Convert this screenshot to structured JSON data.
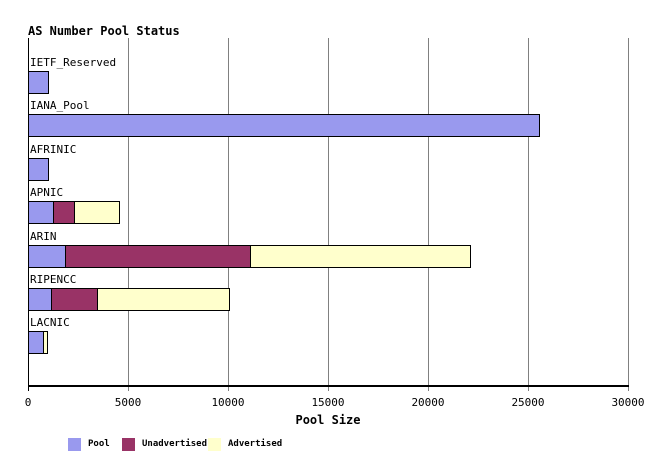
{
  "title": "AS Number Pool Status",
  "xlabel": "Pool Size",
  "chart_data": {
    "type": "bar",
    "orientation": "horizontal",
    "stacked": true,
    "title": "AS Number Pool Status",
    "xlabel": "Pool Size",
    "ylabel": "",
    "categories": [
      "IETF_Reserved",
      "IANA_Pool",
      "AFRINIC",
      "APNIC",
      "ARIN",
      "RIPENCC",
      "LACNIC"
    ],
    "series": [
      {
        "name": "Pool",
        "color": "#9999ee",
        "values": [
          1025,
          25600,
          1025,
          1300,
          1900,
          1175,
          775
        ]
      },
      {
        "name": "Unadvertised",
        "color": "#993366",
        "values": [
          0,
          0,
          0,
          1050,
          9250,
          2325,
          25
        ]
      },
      {
        "name": "Advertised",
        "color": "#ffffcc",
        "values": [
          0,
          0,
          0,
          2250,
          11000,
          6600,
          175
        ]
      }
    ],
    "totals": [
      1025,
      25600,
      1025,
      4600,
      22150,
      10100,
      975
    ],
    "xlim": [
      0,
      30000
    ],
    "x_ticks": [
      0,
      5000,
      10000,
      15000,
      20000,
      25000,
      30000
    ],
    "x_tick_labels": [
      "0",
      "5000",
      "10000",
      "15000",
      "20000",
      "25000",
      "30000"
    ],
    "grid": "vertical",
    "legend_position": "bottom"
  },
  "legend": {
    "items": [
      {
        "label": "Pool",
        "color": "#9999ee"
      },
      {
        "label": "Unadvertised",
        "color": "#993366"
      },
      {
        "label": "Advertised",
        "color": "#ffffcc"
      }
    ]
  },
  "colors": {
    "pool": "#9999ee",
    "unadvertised": "#993366",
    "advertised": "#ffffcc",
    "gridline": "#808080",
    "axis": "#000000",
    "text": "#000000",
    "background": "#ffffff"
  }
}
